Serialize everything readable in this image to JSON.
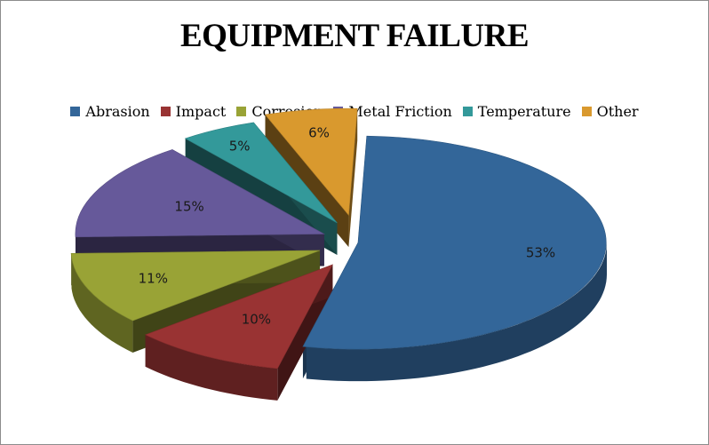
{
  "chart_data": {
    "type": "pie",
    "title": "EQUIPMENT FAILURE",
    "legend_position": "top",
    "style": "3d-exploded",
    "series": [
      {
        "name": "Abrasion",
        "value": 53,
        "label": "53%",
        "color": "#336699"
      },
      {
        "name": "Impact",
        "value": 10,
        "label": "10%",
        "color": "#993333"
      },
      {
        "name": "Corrosion",
        "value": 11,
        "label": "11%",
        "color": "#99a336"
      },
      {
        "name": "Metal Friction",
        "value": 15,
        "label": "15%",
        "color": "#66599a"
      },
      {
        "name": "Temperature",
        "value": 5,
        "label": "5%",
        "color": "#33999a"
      },
      {
        "name": "Other",
        "value": 6,
        "label": "6%",
        "color": "#d9992e"
      }
    ]
  }
}
